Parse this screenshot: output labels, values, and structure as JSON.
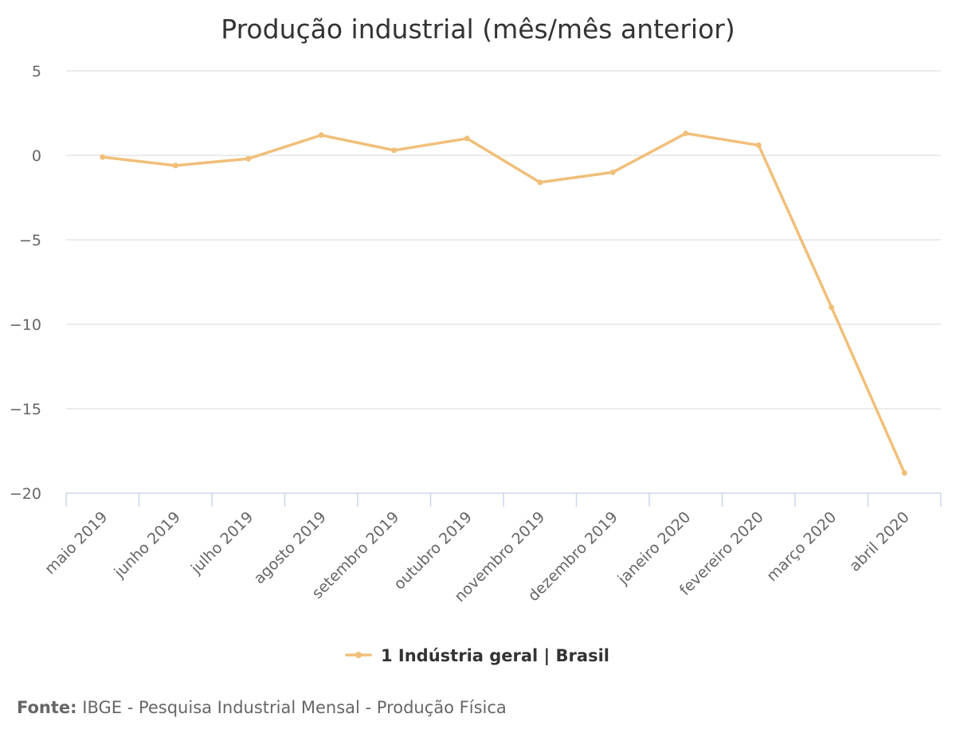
{
  "chart_data": {
    "type": "line",
    "title": "Produção industrial (mês/mês anterior)",
    "categories": [
      "maio 2019",
      "junho 2019",
      "julho 2019",
      "agosto 2019",
      "setembro 2019",
      "outubro 2019",
      "novembro 2019",
      "dezembro 2019",
      "janeiro 2020",
      "fevereiro 2020",
      "março 2020",
      "abril 2020"
    ],
    "series": [
      {
        "name": "1 Indústria geral | Brasil",
        "values": [
          -0.1,
          -0.6,
          -0.2,
          1.2,
          0.3,
          1.0,
          -1.6,
          -1.0,
          1.3,
          0.6,
          -9.0,
          -18.8
        ],
        "color": "#f0bf7a"
      }
    ],
    "yticks": [
      "5",
      "0",
      "−5",
      "−10",
      "−15",
      "−20"
    ],
    "ylim": [
      -20,
      5
    ],
    "grid": true,
    "legend_position": "bottom-center",
    "xlabel": "",
    "ylabel": ""
  },
  "source": {
    "label": "Fonte:",
    "text": "IBGE - Pesquisa Industrial Mensal - Produção Física"
  },
  "colors": {
    "series": "#f0bf7a",
    "grid": "#e6e6e6",
    "axis": "#ccd6eb",
    "text": "#333333",
    "muted": "#666666"
  }
}
